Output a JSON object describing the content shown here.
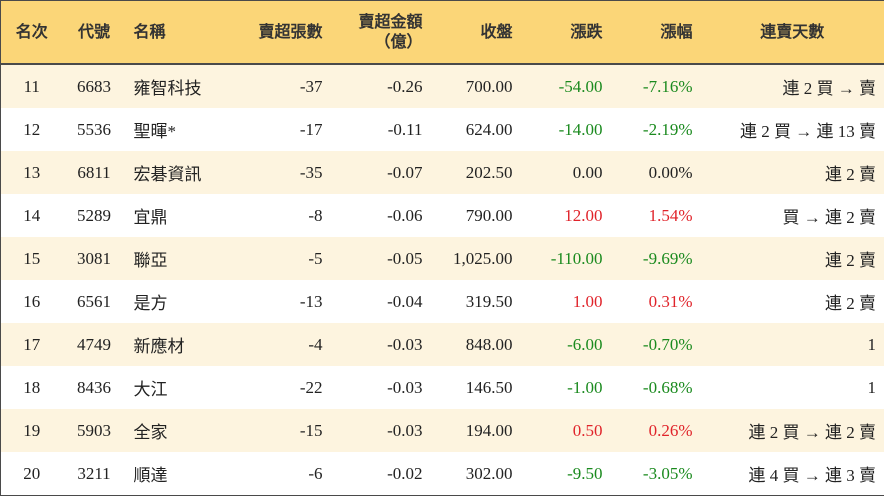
{
  "table": {
    "header": [
      "名次",
      "代號",
      "名稱",
      "賣超張數",
      "賣超金額\n（億）",
      "收盤",
      "漲跌",
      "漲幅",
      "連賣天數"
    ],
    "rows": [
      [
        "11",
        "6683",
        "雍智科技",
        "-37",
        "-0.26",
        "700.00",
        "-54.00",
        "-7.16%",
        "連 2 買 → 賣"
      ],
      [
        "12",
        "5536",
        "聖暉*",
        "-17",
        "-0.11",
        "624.00",
        "-14.00",
        "-2.19%",
        "連 2 買 → 連 13 賣"
      ],
      [
        "13",
        "6811",
        "宏碁資訊",
        "-35",
        "-0.07",
        "202.50",
        "0.00",
        "0.00%",
        "連 2 賣"
      ],
      [
        "14",
        "5289",
        "宜鼎",
        "-8",
        "-0.06",
        "790.00",
        "12.00",
        "1.54%",
        "買 → 連 2 賣"
      ],
      [
        "15",
        "3081",
        "聯亞",
        "-5",
        "-0.05",
        "1,025.00",
        "-110.00",
        "-9.69%",
        "連 2 賣"
      ],
      [
        "16",
        "6561",
        "是方",
        "-13",
        "-0.04",
        "319.50",
        "1.00",
        "0.31%",
        "連 2 賣"
      ],
      [
        "17",
        "4749",
        "新應材",
        "-4",
        "-0.03",
        "848.00",
        "-6.00",
        "-0.70%",
        "1"
      ],
      [
        "18",
        "8436",
        "大江",
        "-22",
        "-0.03",
        "146.50",
        "-1.00",
        "-0.68%",
        "1"
      ],
      [
        "19",
        "5903",
        "全家",
        "-15",
        "-0.03",
        "194.00",
        "0.50",
        "0.26%",
        "連 2 買 → 連 2 賣"
      ],
      [
        "20",
        "3211",
        "順達",
        "-6",
        "-0.02",
        "302.00",
        "-9.50",
        "-3.05%",
        "連 4 買 → 連 3 賣"
      ]
    ]
  }
}
